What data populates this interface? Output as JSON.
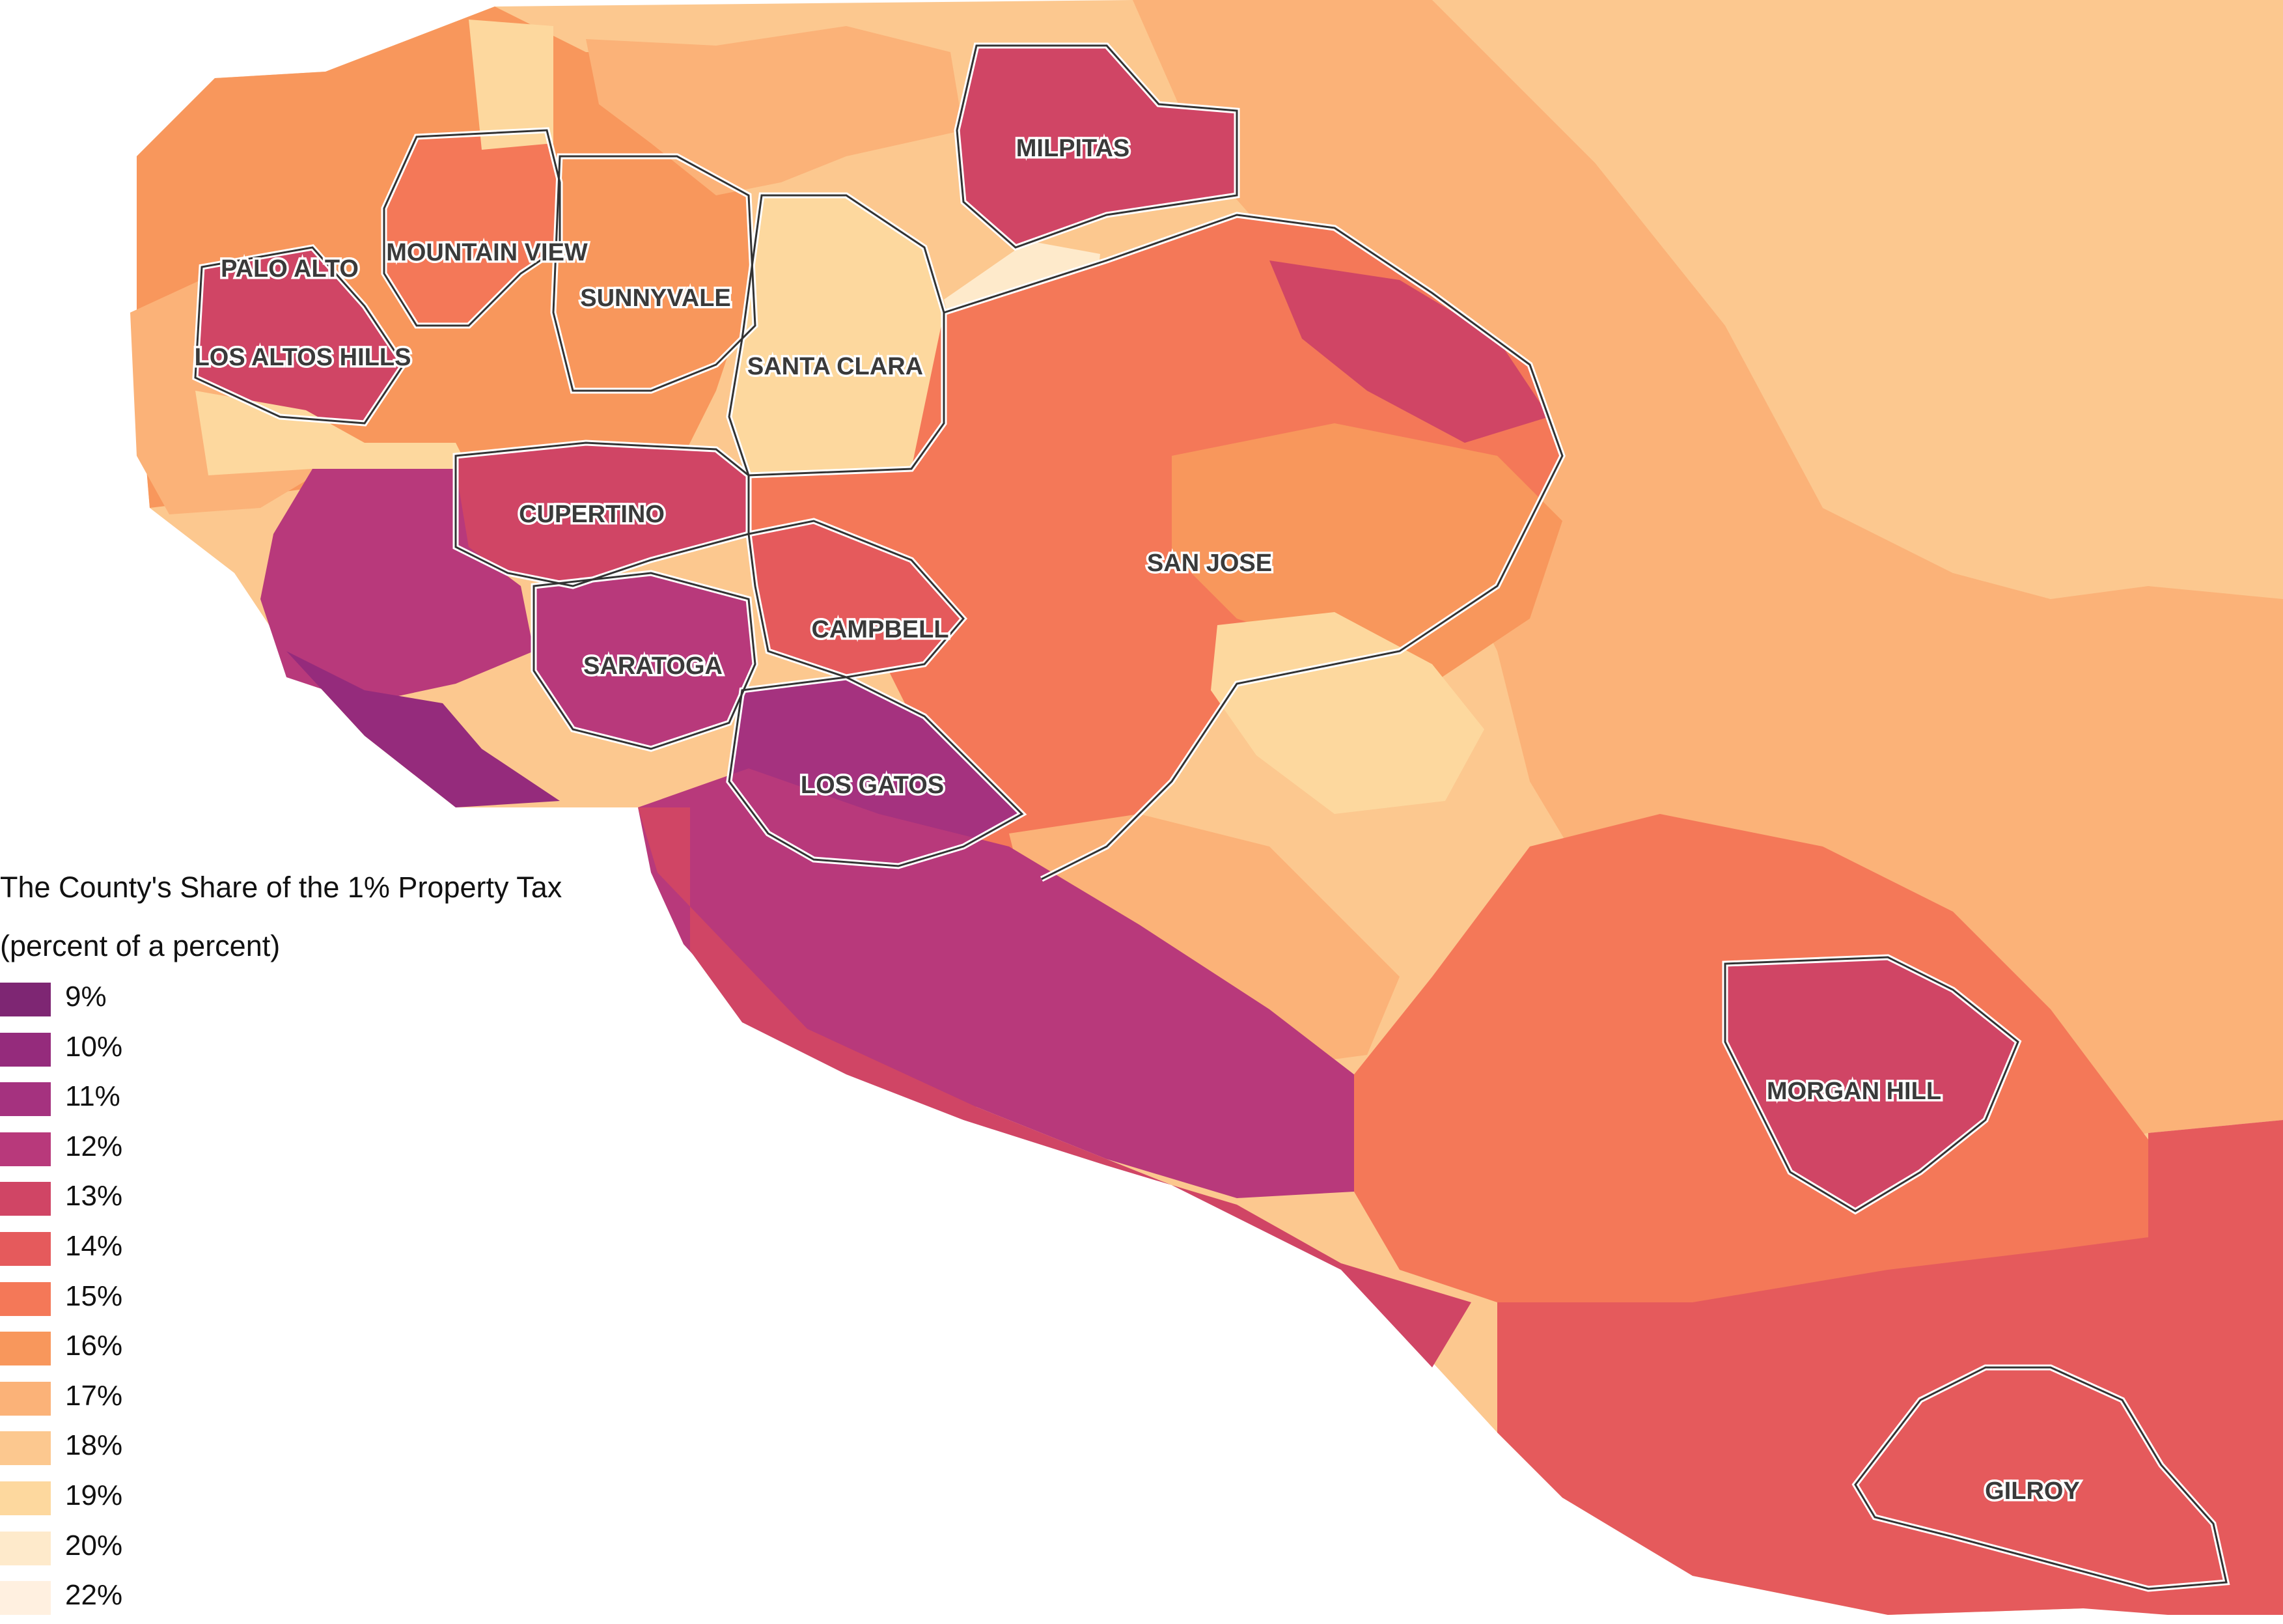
{
  "legend": {
    "title": "The County's Share of the 1% Property Tax",
    "subtitle": "(percent of a percent)",
    "items": [
      {
        "label": "9%",
        "color": "#7e2673"
      },
      {
        "label": "10%",
        "color": "#952b7c"
      },
      {
        "label": "11%",
        "color": "#a5327f"
      },
      {
        "label": "12%",
        "color": "#b8397b"
      },
      {
        "label": "13%",
        "color": "#d04565"
      },
      {
        "label": "14%",
        "color": "#e55a5c"
      },
      {
        "label": "15%",
        "color": "#f47858"
      },
      {
        "label": "16%",
        "color": "#f8975c"
      },
      {
        "label": "17%",
        "color": "#fbb278"
      },
      {
        "label": "18%",
        "color": "#fcc88f"
      },
      {
        "label": "19%",
        "color": "#fdd89e"
      },
      {
        "label": "20%",
        "color": "#feeacb"
      },
      {
        "label": "22%",
        "color": "#fff0e0"
      }
    ]
  },
  "cities": [
    {
      "name": "MILPITAS"
    },
    {
      "name": "PALO ALTO"
    },
    {
      "name": "MOUNTAIN VIEW"
    },
    {
      "name": "SUNNYVALE"
    },
    {
      "name": "LOS ALTOS HILLS"
    },
    {
      "name": "SANTA CLARA"
    },
    {
      "name": "CUPERTINO"
    },
    {
      "name": "SAN JOSE"
    },
    {
      "name": "CAMPBELL"
    },
    {
      "name": "SARATOGA"
    },
    {
      "name": "LOS GATOS"
    },
    {
      "name": "MORGAN HILL"
    },
    {
      "name": "GILROY"
    }
  ]
}
